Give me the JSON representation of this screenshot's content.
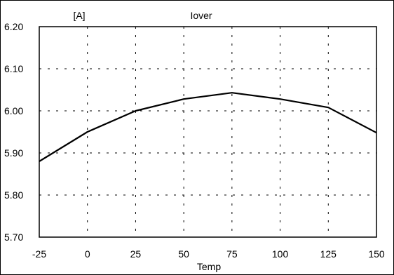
{
  "chart_data": {
    "type": "line",
    "title": "Iover",
    "xlabel": "Temp",
    "ylabel": "[A]",
    "xlim": [
      -25,
      150
    ],
    "ylim": [
      5.7,
      6.2
    ],
    "x_ticks": [
      "-25",
      "0",
      "25",
      "50",
      "75",
      "100",
      "125",
      "150"
    ],
    "y_ticks": [
      "6.20",
      "6.10",
      "6.00",
      "5.90",
      "5.80",
      "5.70"
    ],
    "grid": true,
    "grid_style": "dashed",
    "series": [
      {
        "x": [
          -25,
          0,
          25,
          50,
          75,
          100,
          125,
          150
        ],
        "y": [
          5.88,
          5.95,
          6.0,
          6.028,
          6.043,
          6.028,
          6.008,
          5.948
        ]
      }
    ],
    "colors": {
      "line": "#000000",
      "grid": "#000000",
      "frame": "#000000"
    }
  }
}
